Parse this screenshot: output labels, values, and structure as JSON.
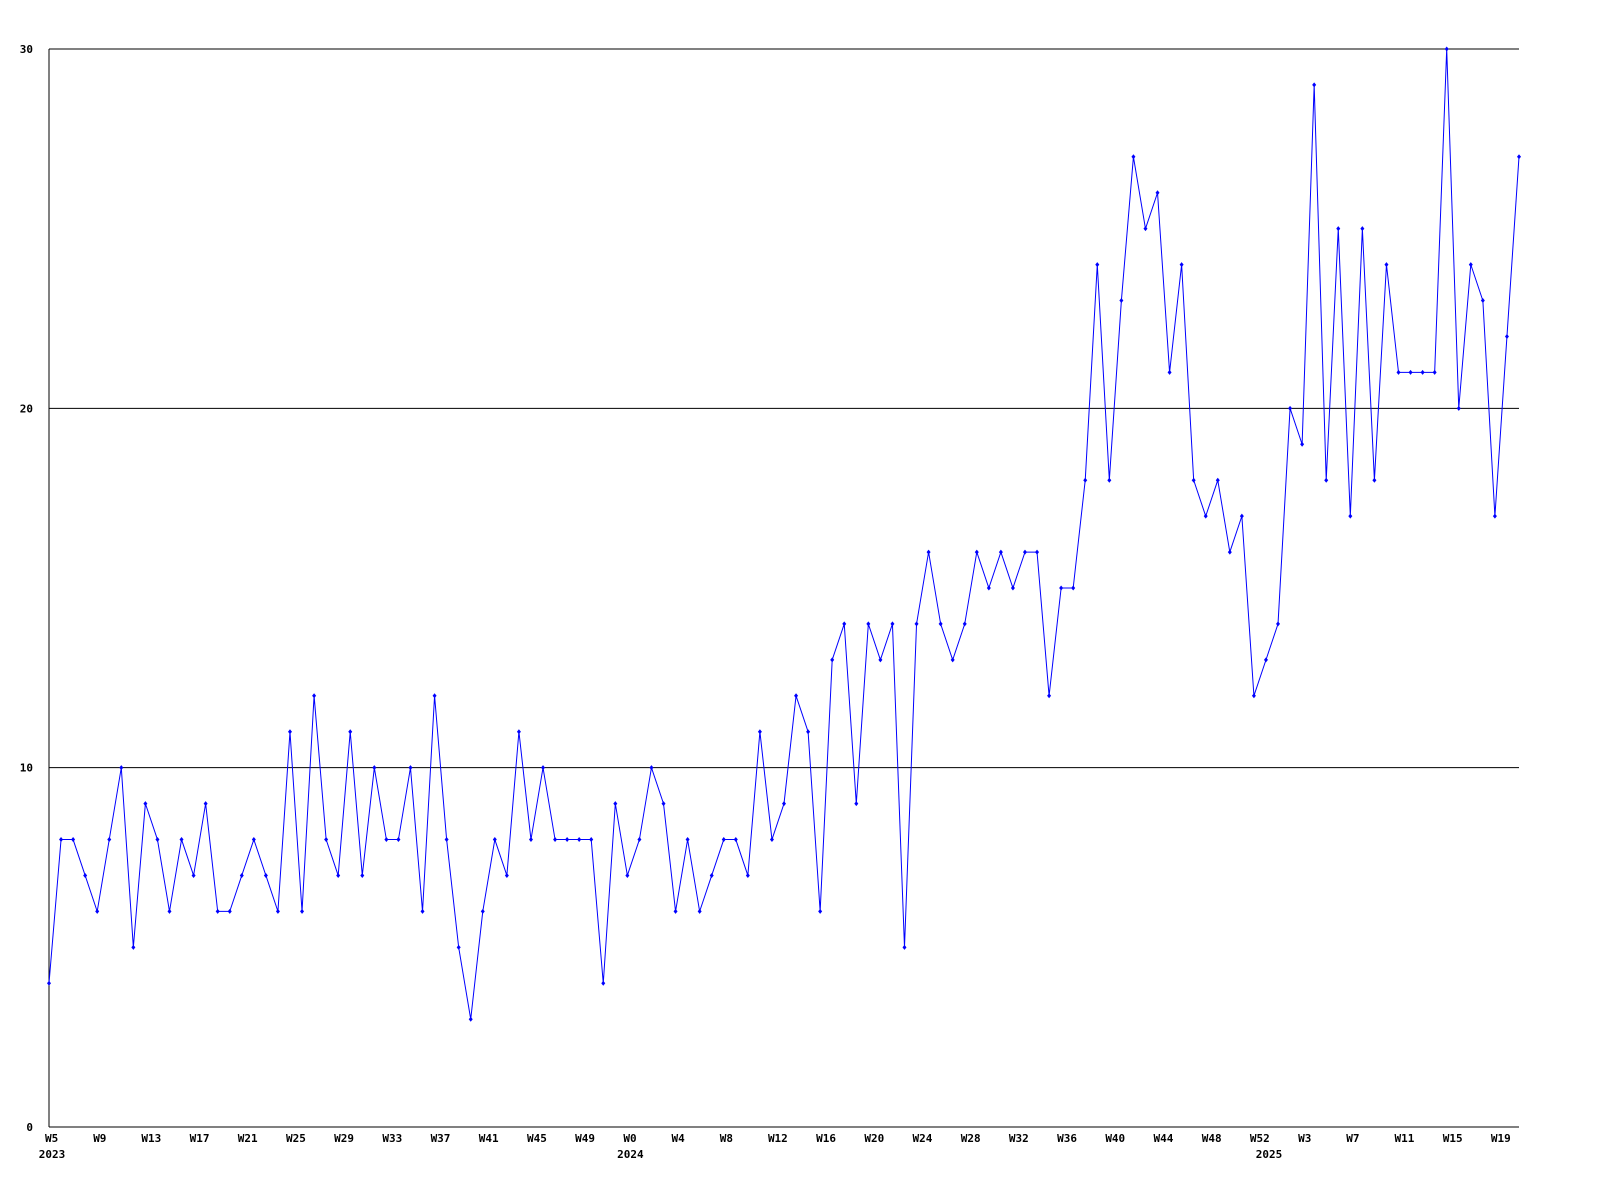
{
  "chart_data": {
    "type": "line",
    "categories": [
      "W5",
      null,
      null,
      null,
      "W9",
      null,
      null,
      null,
      "W13",
      null,
      null,
      null,
      "W17",
      null,
      null,
      null,
      "W21",
      null,
      null,
      null,
      "W25",
      null,
      null,
      null,
      "W29",
      null,
      null,
      null,
      "W33",
      null,
      null,
      null,
      "W37",
      null,
      null,
      null,
      "W41",
      null,
      null,
      null,
      "W45",
      null,
      null,
      null,
      "W49",
      null,
      null,
      null,
      "W0",
      null,
      null,
      null,
      "W4",
      null,
      null,
      null,
      "W8",
      null,
      null,
      null,
      "W12",
      null,
      null,
      null,
      "W16",
      null,
      null,
      null,
      "W20",
      null,
      null,
      null,
      "W24",
      null,
      null,
      null,
      "W28",
      null,
      null,
      null,
      "W32",
      null,
      null,
      null,
      "W36",
      null,
      null,
      null,
      "W40",
      null,
      null,
      null,
      "W44",
      null,
      null,
      null,
      "W48",
      null,
      null,
      null,
      "W52",
      null,
      null,
      null,
      "W3",
      null,
      null,
      null,
      "W7",
      null,
      null,
      null,
      "W11",
      null,
      null,
      null,
      "W15",
      null,
      null,
      null,
      "W19",
      null,
      null
    ],
    "category_groups": [
      {
        "label": "2023",
        "index": 0
      },
      {
        "label": "2024",
        "index": 48
      },
      {
        "label": "2025",
        "index": 101
      }
    ],
    "series": [
      {
        "color": "#0000ff",
        "values": [
          4,
          8,
          8,
          7,
          6,
          8,
          10,
          5,
          9,
          8,
          6,
          8,
          7,
          9,
          6,
          6,
          7,
          8,
          7,
          6,
          11,
          6,
          12,
          8,
          7,
          11,
          7,
          10,
          8,
          8,
          10,
          6,
          12,
          8,
          5,
          3,
          6,
          8,
          7,
          11,
          8,
          10,
          8,
          8,
          8,
          8,
          4,
          9,
          7,
          8,
          10,
          9,
          6,
          8,
          6,
          7,
          8,
          8,
          7,
          11,
          8,
          9,
          12,
          11,
          6,
          13,
          14,
          9,
          14,
          13,
          14,
          5,
          14,
          16,
          14,
          13,
          14,
          16,
          15,
          16,
          15,
          16,
          16,
          12,
          15,
          15,
          18,
          24,
          18,
          23,
          27,
          25,
          26,
          21,
          24,
          18,
          17,
          18,
          16,
          17,
          12,
          13,
          14,
          20,
          19,
          29,
          18,
          25,
          17,
          25,
          18,
          24,
          21,
          21,
          21,
          21,
          30,
          20,
          24,
          23,
          17,
          22,
          27
        ]
      }
    ],
    "ylim": [
      0,
      30
    ],
    "yticks": [
      0,
      10,
      20,
      30
    ],
    "grid": true
  }
}
